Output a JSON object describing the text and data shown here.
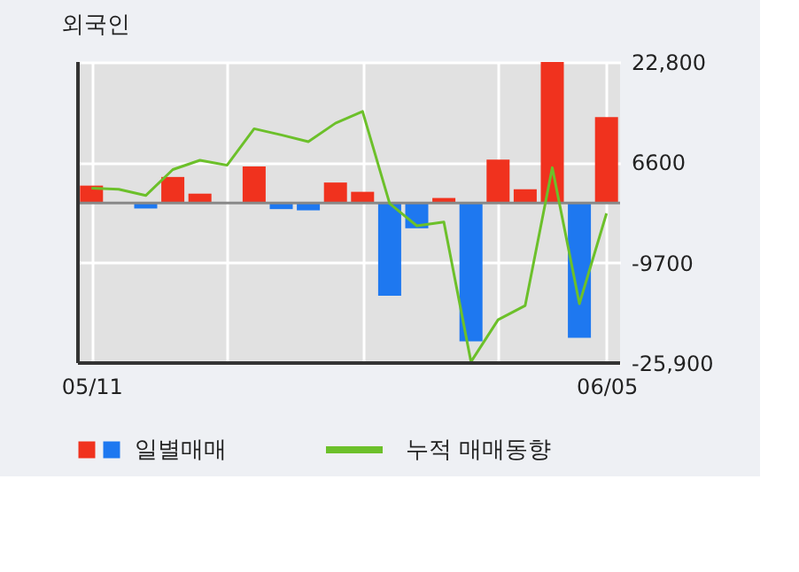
{
  "chart_data": {
    "type": "bar",
    "title": "외국인",
    "categories": [
      "05/11",
      null,
      null,
      null,
      null,
      null,
      null,
      null,
      null,
      null,
      null,
      null,
      null,
      null,
      null,
      null,
      null,
      null,
      null,
      "06/05"
    ],
    "series": [
      {
        "name": "일별매매",
        "colors": [
          "#f0321e",
          "#f0321e",
          "#1e78f0",
          "#f0321e",
          "#f0321e",
          "#f0321e",
          "#f0321e",
          "#1e78f0",
          "#1e78f0",
          "#f0321e",
          "#f0321e",
          "#1e78f0",
          "#1e78f0",
          "#f0321e",
          "#1e78f0",
          "#f0321e",
          "#f0321e",
          "#f0321e",
          "#1e78f0",
          "#f0321e"
        ],
        "values": [
          2800,
          0,
          -900,
          4200,
          1500,
          0,
          5900,
          -1000,
          -1200,
          3300,
          1800,
          -15000,
          -4100,
          800,
          -22400,
          7000,
          2200,
          22800,
          -21800,
          13900
        ]
      },
      {
        "name": "누적 매매동향",
        "type": "line",
        "color": "#6cc02a",
        "values": [
          2400,
          2200,
          1200,
          5400,
          6900,
          6100,
          12000,
          11000,
          9900,
          12900,
          14800,
          -100,
          -3700,
          -3100,
          -25700,
          -18900,
          -16600,
          5700,
          -16300,
          -1700
        ]
      }
    ],
    "ylim": [
      -25900,
      22800
    ],
    "yticks": [
      {
        "value": -25900,
        "label": "-25,900"
      },
      {
        "value": -9700,
        "label": "-9700"
      },
      {
        "value": 6600,
        "label": "6600"
      },
      {
        "value": 22800,
        "label": "22,800"
      }
    ],
    "ref_lines": [
      {
        "axis": "y",
        "value": 0,
        "color": "#888888"
      }
    ],
    "grid": true,
    "legend": "bottom"
  }
}
